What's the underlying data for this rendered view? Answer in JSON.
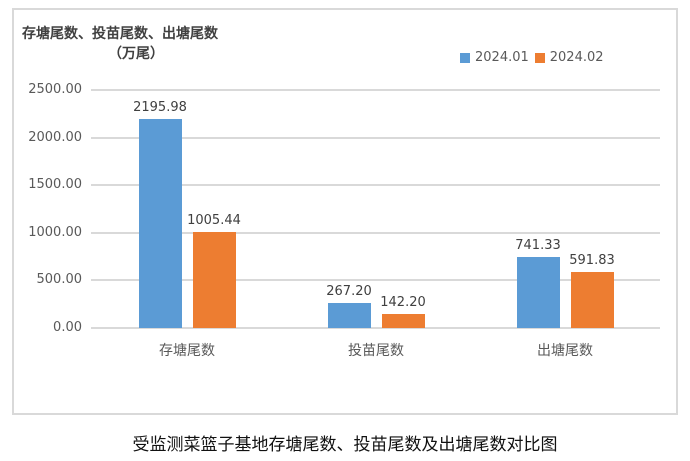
{
  "chart_data": {
    "type": "bar",
    "title": "受监测菜篮子基地存塘尾数、投苗尾数及出塘尾数对比图",
    "ylabel": "存塘尾数、投苗尾数、出塘尾数（万尾）",
    "xlabel": "",
    "categories": [
      "存塘尾数",
      "投苗尾数",
      "出塘尾数"
    ],
    "series": [
      {
        "name": "2024.01",
        "color": "#5b9bd5",
        "values": [
          2195.98,
          267.2,
          741.33
        ]
      },
      {
        "name": "2024.02",
        "color": "#ed7d31",
        "values": [
          1005.44,
          142.2,
          591.83
        ]
      }
    ],
    "ylim": [
      0,
      2500
    ],
    "yticks": [
      "0.00",
      "500.00",
      "1000.00",
      "1500.00",
      "2000.00",
      "2500.00"
    ],
    "grid": true,
    "legend_position": "top-right"
  },
  "labels": {
    "ytitle_line1": "存塘尾数、投苗尾数、出塘尾数",
    "ytitle_line2": "（万尾）",
    "legend": [
      "2024.01",
      "2024.02"
    ],
    "value_labels": [
      [
        "2195.98",
        "267.20",
        "741.33"
      ],
      [
        "1005.44",
        "142.20",
        "591.83"
      ]
    ],
    "caption": "受监测菜篮子基地存塘尾数、投苗尾数及出塘尾数对比图"
  }
}
